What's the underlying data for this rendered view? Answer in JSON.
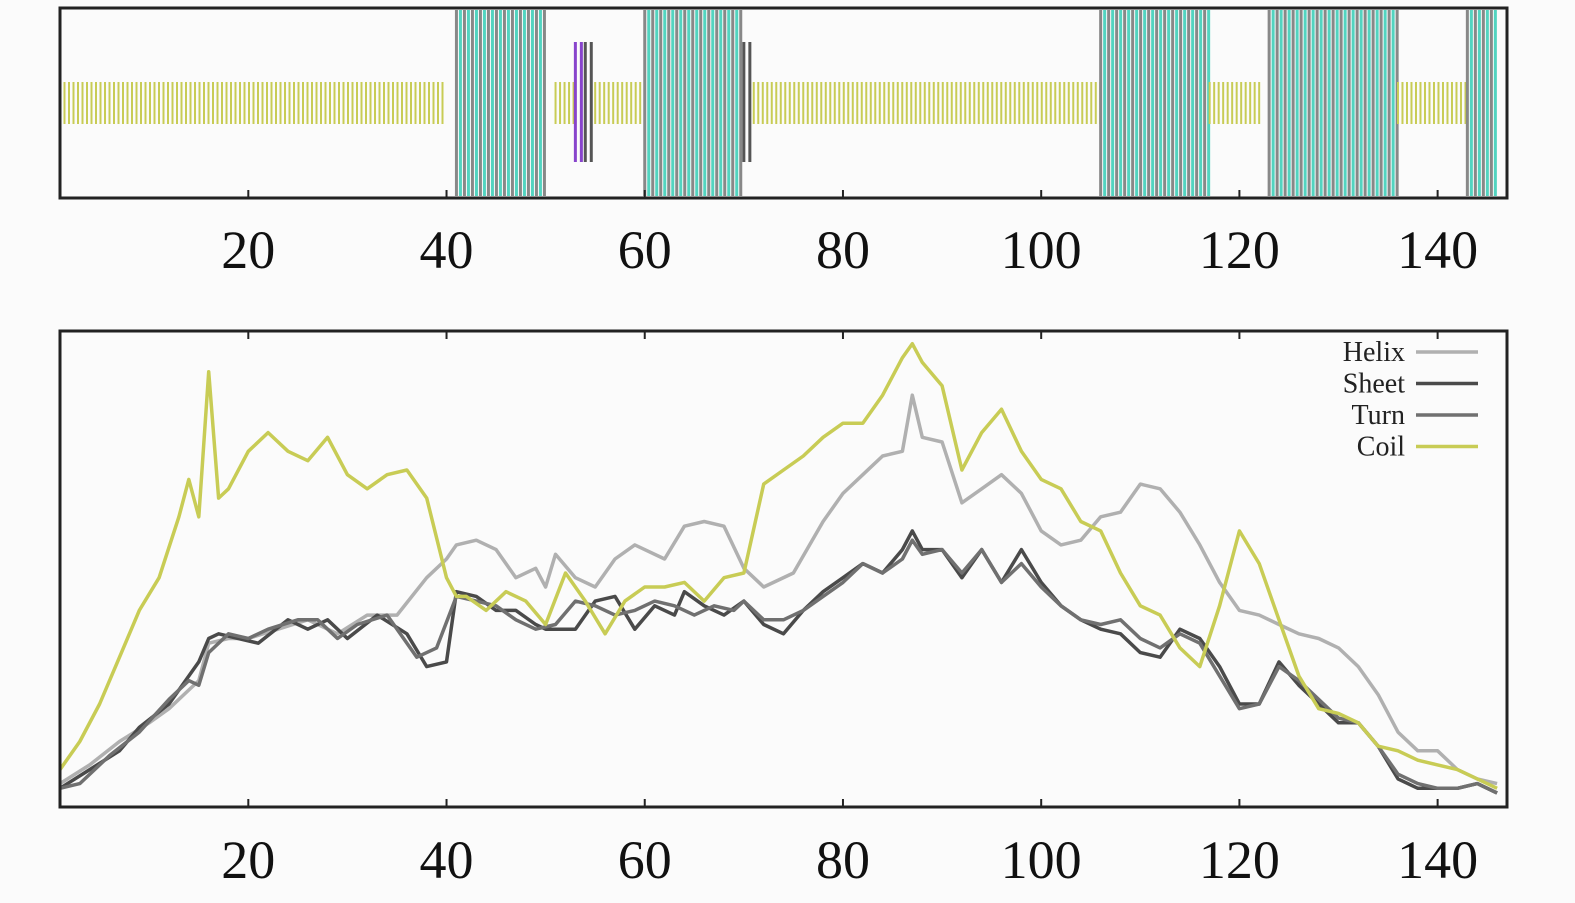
{
  "chart_data": [
    {
      "type": "heatmap",
      "description_kind": "secondary-structure track",
      "xlim": [
        1,
        147
      ],
      "xticks": [
        20,
        40,
        60,
        80,
        100,
        120,
        140
      ],
      "xtick_labels": [
        "20",
        "40",
        "60",
        "80",
        "100",
        "120",
        "140"
      ],
      "segments": [
        {
          "start": 1,
          "end": 40,
          "state": "coil"
        },
        {
          "start": 41,
          "end": 50,
          "state": "helix"
        },
        {
          "start": 51,
          "end": 53,
          "state": "coil"
        },
        {
          "start": 53,
          "end": 54,
          "state": "turn"
        },
        {
          "start": 54,
          "end": 55,
          "state": "sheet"
        },
        {
          "start": 55,
          "end": 60,
          "state": "coil"
        },
        {
          "start": 60,
          "end": 70,
          "state": "helix"
        },
        {
          "start": 70,
          "end": 71,
          "state": "sheet"
        },
        {
          "start": 71,
          "end": 106,
          "state": "coil"
        },
        {
          "start": 106,
          "end": 117,
          "state": "helix"
        },
        {
          "start": 117,
          "end": 122,
          "state": "coil"
        },
        {
          "start": 123,
          "end": 136,
          "state": "helix"
        },
        {
          "start": 136,
          "end": 143,
          "state": "coil"
        },
        {
          "start": 143,
          "end": 146,
          "state": "helix"
        }
      ],
      "state_colors": {
        "helix": "#52d4c0",
        "sheet": "#555555",
        "turn": "#8844cc",
        "coil": "#c8cc55"
      },
      "bar_color": "#888888"
    },
    {
      "type": "line",
      "xlim": [
        1,
        147
      ],
      "ylim": [
        0,
        1
      ],
      "xticks": [
        20,
        40,
        60,
        80,
        100,
        120,
        140
      ],
      "xtick_labels": [
        "20",
        "40",
        "60",
        "80",
        "100",
        "120",
        "140"
      ],
      "legend_position": "top-right",
      "series": [
        {
          "name": "Helix",
          "color": "#b0b0b0",
          "x": [
            1,
            4,
            7,
            10,
            12,
            14,
            15,
            16,
            18,
            20,
            23,
            26,
            29,
            32,
            35,
            38,
            40,
            41,
            43,
            45,
            47,
            49,
            50,
            51,
            53,
            55,
            57,
            59,
            62,
            64,
            66,
            68,
            70,
            72,
            75,
            78,
            80,
            82,
            84,
            86,
            87,
            88,
            90,
            92,
            94,
            96,
            98,
            100,
            102,
            104,
            106,
            108,
            110,
            112,
            114,
            116,
            118,
            120,
            122,
            124,
            126,
            128,
            130,
            132,
            134,
            136,
            138,
            140,
            142,
            144,
            146
          ],
          "values": [
            0.05,
            0.09,
            0.14,
            0.18,
            0.21,
            0.25,
            0.27,
            0.35,
            0.36,
            0.36,
            0.38,
            0.4,
            0.37,
            0.41,
            0.41,
            0.49,
            0.53,
            0.56,
            0.57,
            0.55,
            0.49,
            0.51,
            0.47,
            0.54,
            0.49,
            0.47,
            0.53,
            0.56,
            0.53,
            0.6,
            0.61,
            0.6,
            0.51,
            0.47,
            0.5,
            0.61,
            0.67,
            0.71,
            0.75,
            0.76,
            0.88,
            0.79,
            0.78,
            0.65,
            0.68,
            0.71,
            0.67,
            0.59,
            0.56,
            0.57,
            0.62,
            0.63,
            0.69,
            0.68,
            0.63,
            0.56,
            0.48,
            0.42,
            0.41,
            0.39,
            0.37,
            0.36,
            0.34,
            0.3,
            0.24,
            0.16,
            0.12,
            0.12,
            0.08,
            0.06,
            0.05
          ]
        },
        {
          "name": "Sheet",
          "color": "#4a4a4a",
          "x": [
            1,
            4,
            7,
            9,
            12,
            14,
            15,
            16,
            17,
            19,
            21,
            24,
            26,
            28,
            30,
            33,
            36,
            38,
            40,
            41,
            43,
            45,
            47,
            49,
            50,
            51,
            53,
            55,
            57,
            59,
            61,
            63,
            64,
            66,
            68,
            70,
            72,
            74,
            76,
            78,
            80,
            82,
            84,
            86,
            87,
            88,
            90,
            92,
            94,
            96,
            98,
            100,
            102,
            104,
            106,
            108,
            110,
            112,
            114,
            116,
            118,
            120,
            122,
            124,
            126,
            128,
            130,
            132,
            134,
            136,
            138,
            140,
            142,
            144,
            146
          ],
          "values": [
            0.04,
            0.08,
            0.12,
            0.17,
            0.22,
            0.28,
            0.31,
            0.36,
            0.37,
            0.36,
            0.35,
            0.4,
            0.38,
            0.4,
            0.36,
            0.41,
            0.37,
            0.3,
            0.31,
            0.46,
            0.45,
            0.42,
            0.42,
            0.39,
            0.38,
            0.38,
            0.38,
            0.44,
            0.45,
            0.38,
            0.43,
            0.41,
            0.46,
            0.43,
            0.41,
            0.44,
            0.39,
            0.37,
            0.42,
            0.46,
            0.49,
            0.52,
            0.5,
            0.55,
            0.59,
            0.55,
            0.55,
            0.49,
            0.55,
            0.48,
            0.55,
            0.48,
            0.43,
            0.4,
            0.38,
            0.37,
            0.33,
            0.32,
            0.38,
            0.36,
            0.3,
            0.22,
            0.22,
            0.31,
            0.26,
            0.22,
            0.18,
            0.18,
            0.13,
            0.06,
            0.04,
            0.04,
            0.04,
            0.05,
            0.03
          ]
        },
        {
          "name": "Turn",
          "color": "#707070",
          "x": [
            1,
            3,
            6,
            9,
            12,
            14,
            15,
            16,
            18,
            20,
            22,
            25,
            27,
            29,
            31,
            34,
            37,
            39,
            41,
            43,
            45,
            47,
            49,
            51,
            53,
            55,
            57,
            59,
            61,
            63,
            65,
            67,
            69,
            70,
            72,
            74,
            76,
            78,
            80,
            82,
            84,
            86,
            87,
            88,
            90,
            92,
            94,
            96,
            98,
            100,
            102,
            104,
            106,
            108,
            110,
            112,
            114,
            116,
            118,
            120,
            122,
            124,
            126,
            128,
            130,
            132,
            134,
            136,
            138,
            140,
            142,
            144,
            146
          ],
          "values": [
            0.04,
            0.05,
            0.11,
            0.16,
            0.23,
            0.27,
            0.26,
            0.33,
            0.37,
            0.36,
            0.38,
            0.4,
            0.4,
            0.36,
            0.39,
            0.41,
            0.32,
            0.34,
            0.45,
            0.44,
            0.43,
            0.4,
            0.38,
            0.39,
            0.44,
            0.43,
            0.41,
            0.42,
            0.44,
            0.43,
            0.41,
            0.43,
            0.42,
            0.44,
            0.4,
            0.4,
            0.42,
            0.45,
            0.48,
            0.52,
            0.5,
            0.53,
            0.57,
            0.54,
            0.55,
            0.5,
            0.55,
            0.48,
            0.52,
            0.47,
            0.43,
            0.4,
            0.39,
            0.4,
            0.36,
            0.34,
            0.37,
            0.35,
            0.28,
            0.21,
            0.22,
            0.3,
            0.27,
            0.23,
            0.19,
            0.18,
            0.13,
            0.07,
            0.05,
            0.04,
            0.04,
            0.05,
            0.03
          ]
        },
        {
          "name": "Coil",
          "color": "#c8cc55",
          "x": [
            1,
            3,
            5,
            7,
            9,
            11,
            13,
            14,
            15,
            16,
            17,
            18,
            20,
            22,
            24,
            26,
            28,
            30,
            32,
            34,
            36,
            38,
            40,
            41,
            42,
            44,
            46,
            48,
            50,
            52,
            54,
            56,
            58,
            60,
            62,
            64,
            66,
            68,
            70,
            72,
            74,
            76,
            78,
            80,
            82,
            84,
            86,
            87,
            88,
            90,
            92,
            94,
            96,
            98,
            100,
            102,
            104,
            106,
            108,
            110,
            112,
            114,
            116,
            118,
            120,
            122,
            124,
            126,
            128,
            130,
            132,
            134,
            136,
            138,
            140,
            142,
            144,
            146
          ],
          "values": [
            0.08,
            0.14,
            0.22,
            0.32,
            0.42,
            0.49,
            0.62,
            0.7,
            0.62,
            0.93,
            0.66,
            0.68,
            0.76,
            0.8,
            0.76,
            0.74,
            0.79,
            0.71,
            0.68,
            0.71,
            0.72,
            0.66,
            0.49,
            0.45,
            0.45,
            0.42,
            0.46,
            0.44,
            0.39,
            0.5,
            0.44,
            0.37,
            0.44,
            0.47,
            0.47,
            0.48,
            0.44,
            0.49,
            0.5,
            0.69,
            0.72,
            0.75,
            0.79,
            0.82,
            0.82,
            0.88,
            0.96,
            0.99,
            0.95,
            0.9,
            0.72,
            0.8,
            0.85,
            0.76,
            0.7,
            0.68,
            0.61,
            0.59,
            0.5,
            0.43,
            0.41,
            0.34,
            0.3,
            0.43,
            0.59,
            0.52,
            0.4,
            0.28,
            0.21,
            0.2,
            0.18,
            0.13,
            0.12,
            0.1,
            0.09,
            0.08,
            0.06,
            0.04
          ]
        }
      ]
    }
  ]
}
